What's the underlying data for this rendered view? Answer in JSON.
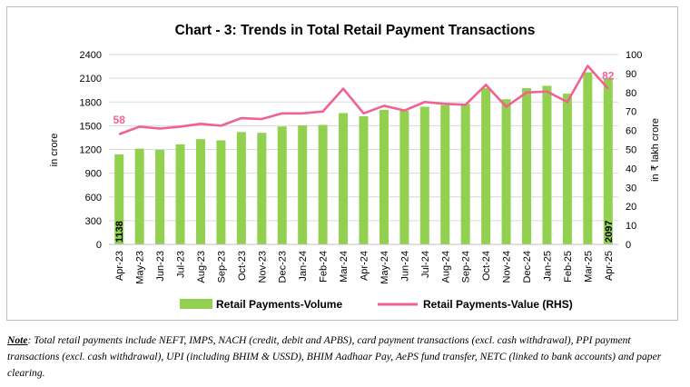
{
  "chart_data": {
    "type": "bar",
    "title": "Chart - 3: Trends in Total Retail Payment Transactions",
    "categories": [
      "Apr-23",
      "May-23",
      "Jun-23",
      "Jul-23",
      "Aug-23",
      "Sep-23",
      "Oct-23",
      "Nov-23",
      "Dec-23",
      "Jan-24",
      "Feb-24",
      "Mar-24",
      "Apr-24",
      "May-24",
      "Jun-24",
      "Jul-24",
      "Aug-24",
      "Sep-24",
      "Oct-24",
      "Nov-24",
      "Dec-24",
      "Jan-25",
      "Feb-25",
      "Mar-25",
      "Apr-25"
    ],
    "series": [
      {
        "name": "Retail Payments-Volume",
        "type": "bar",
        "axis": "left",
        "color": "#92d050",
        "values": [
          1138,
          1210,
          1195,
          1265,
          1330,
          1315,
          1420,
          1410,
          1490,
          1505,
          1510,
          1660,
          1620,
          1700,
          1690,
          1740,
          1760,
          1775,
          1975,
          1835,
          1975,
          2005,
          1905,
          2175,
          2097
        ]
      },
      {
        "name": "Retail Payments-Value (RHS)",
        "type": "line",
        "axis": "right",
        "color": "#f06292",
        "values": [
          58,
          62,
          61,
          62,
          63.5,
          62.5,
          66.5,
          66,
          69,
          69,
          70,
          82,
          69,
          73,
          70.5,
          75,
          74,
          73.5,
          84,
          72.5,
          80,
          80.5,
          75,
          94,
          82
        ]
      }
    ],
    "ylabel": "in crore",
    "y2label": "in ₹ lakh crore",
    "ylim": [
      0,
      2400
    ],
    "y_ticks": [
      "0",
      "300",
      "600",
      "900",
      "1200",
      "1500",
      "1800",
      "2100",
      "2400"
    ],
    "y2lim": [
      0,
      100
    ],
    "y2_ticks": [
      "0",
      "10",
      "20",
      "30",
      "40",
      "50",
      "60",
      "70",
      "80",
      "90",
      "100"
    ],
    "grid": true,
    "legend": "bottom",
    "data_labels": {
      "volume_first": "1138",
      "volume_last": "2097",
      "value_first": "58",
      "value_last": "82"
    }
  },
  "note": {
    "label": "Note",
    "text": ": Total retail payments include NEFT, IMPS, NACH (credit, debit and APBS), card payment transactions (excl. cash withdrawal), PPI payment transactions (excl. cash withdrawal), UPI (including BHIM & USSD), BHIM Aadhaar Pay, AePS fund transfer, NETC (linked to bank accounts) and paper clearing."
  }
}
